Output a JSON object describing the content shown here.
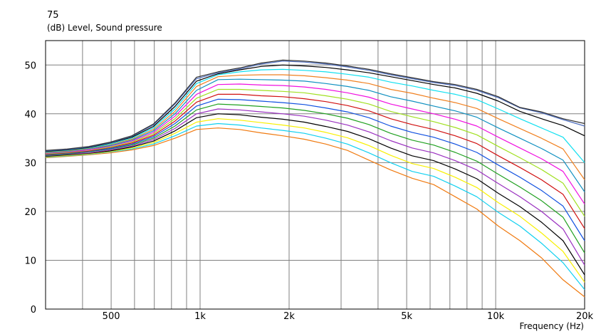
{
  "chart_data": {
    "type": "line",
    "title": "",
    "ylabel": "(dB)  Level, Sound pressure",
    "xlabel": "Frequency  (Hz)",
    "y_max_label": "75",
    "x_scale": "log",
    "xlim": [
      300,
      20000
    ],
    "ylim": [
      0,
      55
    ],
    "grid": true,
    "x_tick_labels": [
      {
        "value": 500,
        "label": "500"
      },
      {
        "value": 1000,
        "label": "1k"
      },
      {
        "value": 2000,
        "label": "2k"
      },
      {
        "value": 5000,
        "label": "5k"
      },
      {
        "value": 10000,
        "label": "10k"
      },
      {
        "value": 20000,
        "label": "20k"
      }
    ],
    "y_ticks": [
      0,
      10,
      20,
      30,
      40,
      50
    ],
    "x_grid_lines": [
      400,
      500,
      600,
      700,
      800,
      900,
      1000,
      2000,
      3000,
      4000,
      5000,
      6000,
      7000,
      8000,
      9000,
      10000
    ],
    "series": [
      {
        "color": "#f07a10",
        "values": [
          31.0,
          31.3,
          31.6,
          32.0,
          32.6,
          33.5,
          35.0,
          36.8,
          37.1,
          36.8,
          36.1,
          35.5,
          34.8,
          33.8,
          32.5,
          30.5,
          28.5,
          26.8,
          25.5,
          23.0,
          20.5,
          17.0,
          14.0,
          10.5,
          6.0,
          2.5
        ]
      },
      {
        "color": "#10d0f0",
        "values": [
          31.1,
          31.4,
          31.7,
          32.2,
          32.8,
          33.8,
          35.5,
          37.5,
          38.0,
          37.7,
          37.1,
          36.6,
          36.0,
          35.0,
          33.8,
          32.0,
          30.0,
          28.2,
          27.2,
          25.2,
          23.0,
          19.8,
          17.0,
          13.5,
          9.5,
          4.0
        ]
      },
      {
        "color": "#f8f000",
        "values": [
          31.2,
          31.5,
          31.8,
          32.3,
          33.0,
          34.1,
          36.0,
          38.3,
          39.0,
          38.7,
          38.2,
          37.7,
          37.1,
          36.2,
          35.1,
          33.5,
          31.5,
          29.8,
          28.8,
          27.0,
          24.9,
          21.8,
          19.0,
          15.6,
          11.8,
          5.5
        ]
      },
      {
        "color": "#000000",
        "values": [
          31.3,
          31.6,
          31.9,
          32.4,
          33.2,
          34.4,
          36.5,
          39.2,
          40.0,
          39.8,
          39.3,
          38.9,
          38.3,
          37.4,
          36.4,
          34.9,
          33.0,
          31.4,
          30.4,
          28.7,
          26.7,
          23.7,
          21.0,
          17.8,
          14.0,
          7.0
        ]
      },
      {
        "color": "#9a30c0",
        "values": [
          31.4,
          31.7,
          32.0,
          32.6,
          33.4,
          34.7,
          37.0,
          40.0,
          41.0,
          40.8,
          40.4,
          40.0,
          39.5,
          38.7,
          37.7,
          36.3,
          34.5,
          33.0,
          32.0,
          30.4,
          28.5,
          25.7,
          23.0,
          20.0,
          16.4,
          9.0
        ]
      },
      {
        "color": "#20a020",
        "values": [
          31.5,
          31.8,
          32.2,
          32.8,
          33.6,
          35.0,
          37.5,
          40.8,
          42.0,
          41.8,
          41.5,
          41.2,
          40.7,
          40.0,
          39.1,
          37.8,
          36.0,
          34.6,
          33.6,
          32.1,
          30.3,
          27.6,
          25.0,
          22.2,
          18.8,
          11.5
        ]
      },
      {
        "color": "#1050e0",
        "values": [
          31.6,
          31.9,
          32.3,
          32.9,
          33.8,
          35.3,
          38.0,
          41.6,
          43.0,
          42.9,
          42.6,
          42.3,
          41.9,
          41.2,
          40.4,
          39.2,
          37.5,
          36.2,
          35.2,
          33.8,
          32.1,
          29.5,
          27.0,
          24.3,
          21.1,
          14.0
        ]
      },
      {
        "color": "#d01010",
        "values": [
          31.7,
          32.0,
          32.4,
          33.1,
          34.0,
          35.6,
          38.5,
          42.4,
          44.0,
          44.0,
          43.7,
          43.5,
          43.1,
          42.5,
          41.7,
          40.6,
          39.0,
          37.8,
          36.8,
          35.5,
          33.9,
          31.4,
          29.0,
          26.5,
          23.5,
          16.5
        ]
      },
      {
        "color": "#a0e020",
        "values": [
          31.8,
          32.1,
          32.5,
          33.2,
          34.2,
          35.9,
          39.0,
          43.2,
          45.0,
          45.0,
          44.8,
          44.6,
          44.3,
          43.7,
          43.0,
          42.0,
          40.5,
          39.4,
          38.4,
          37.2,
          35.7,
          33.3,
          31.0,
          28.6,
          25.8,
          19.0
        ]
      },
      {
        "color": "#f010e0",
        "values": [
          31.9,
          32.2,
          32.6,
          33.4,
          34.4,
          36.2,
          39.5,
          44.0,
          46.0,
          46.1,
          45.9,
          45.8,
          45.5,
          45.0,
          44.3,
          43.4,
          42.0,
          41.0,
          40.0,
          38.9,
          37.5,
          35.2,
          33.0,
          30.8,
          28.2,
          21.5
        ]
      },
      {
        "color": "#1090c0",
        "values": [
          32.0,
          32.3,
          32.8,
          33.5,
          34.6,
          36.5,
          40.0,
          44.8,
          47.0,
          47.1,
          47.0,
          46.9,
          46.7,
          46.2,
          45.6,
          44.8,
          43.5,
          42.6,
          41.6,
          40.6,
          39.3,
          37.1,
          35.0,
          32.9,
          30.5,
          24.0
        ]
      },
      {
        "color": "#f08020",
        "values": [
          32.1,
          32.4,
          32.9,
          33.7,
          34.8,
          36.8,
          40.5,
          45.6,
          47.6,
          47.9,
          48.0,
          48.0,
          47.8,
          47.4,
          46.9,
          46.2,
          45.0,
          44.2,
          43.2,
          42.3,
          41.1,
          39.0,
          37.0,
          35.0,
          32.8,
          26.5
        ]
      },
      {
        "color": "#10e0f0",
        "values": [
          32.2,
          32.5,
          33.0,
          33.8,
          35.0,
          37.1,
          41.0,
          46.2,
          48.0,
          48.6,
          49.0,
          49.1,
          48.9,
          48.6,
          48.1,
          47.5,
          46.5,
          45.7,
          44.8,
          44.0,
          42.9,
          41.0,
          39.0,
          37.1,
          35.2,
          30.0
        ]
      },
      {
        "color": "#000000",
        "values": [
          32.3,
          32.6,
          33.1,
          34.0,
          35.2,
          37.4,
          41.5,
          46.7,
          48.2,
          49.0,
          49.7,
          50.0,
          49.8,
          49.5,
          49.0,
          48.4,
          47.6,
          46.8,
          46.0,
          45.3,
          44.2,
          42.6,
          40.5,
          39.0,
          37.6,
          35.5
        ]
      },
      {
        "color": "#5070c0",
        "values": [
          32.4,
          32.7,
          33.2,
          34.1,
          35.4,
          37.7,
          42.0,
          47.2,
          48.4,
          49.2,
          50.2,
          50.8,
          50.6,
          50.2,
          49.6,
          48.9,
          48.0,
          47.2,
          46.4,
          45.8,
          44.8,
          43.3,
          41.2,
          40.2,
          38.8,
          37.5
        ]
      },
      {
        "color": "#303030",
        "values": [
          32.5,
          32.8,
          33.3,
          34.2,
          35.5,
          37.9,
          42.2,
          47.5,
          48.6,
          49.4,
          50.4,
          51.0,
          50.8,
          50.4,
          49.8,
          49.1,
          48.2,
          47.4,
          46.6,
          46.0,
          45.0,
          43.5,
          41.3,
          40.4,
          39.0,
          38.0
        ]
      }
    ]
  }
}
